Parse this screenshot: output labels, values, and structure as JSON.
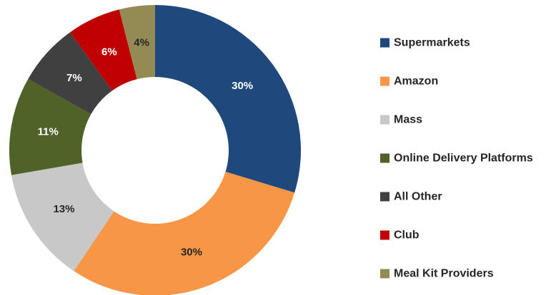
{
  "chart_data": {
    "type": "pie",
    "variant": "donut",
    "title": "",
    "legend_position": "right",
    "slices": [
      {
        "name": "Supermarkets",
        "value": 30,
        "label": "30%",
        "color": "#1F497D",
        "label_color": "#ffffff"
      },
      {
        "name": "Amazon",
        "value": 30,
        "label": "30%",
        "color": "#F79646",
        "label_color": "#262626"
      },
      {
        "name": "Mass",
        "value": 13,
        "label": "13%",
        "color": "#C8C8C8",
        "label_color": "#262626"
      },
      {
        "name": "Online Delivery Platforms",
        "value": 11,
        "label": "11%",
        "color": "#4F6228",
        "label_color": "#ffffff"
      },
      {
        "name": "All Other",
        "value": 7,
        "label": "7%",
        "color": "#404040",
        "label_color": "#ffffff"
      },
      {
        "name": "Club",
        "value": 6,
        "label": "6%",
        "color": "#C00000",
        "label_color": "#ffffff"
      },
      {
        "name": "Meal Kit Providers",
        "value": 4,
        "label": "4%",
        "color": "#948A54",
        "label_color": "#262626"
      }
    ]
  }
}
